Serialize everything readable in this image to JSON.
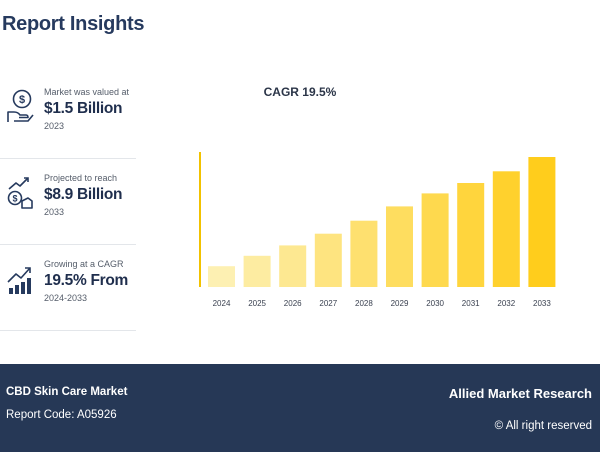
{
  "report": {
    "title": "Report Insights"
  },
  "stats": [
    {
      "label": "Market was valued at",
      "value": "$1.5 Billion",
      "year": "2023",
      "icon": "money-hand-icon"
    },
    {
      "label": "Projected to reach",
      "value": "$8.9 Billion",
      "year": "2033",
      "icon": "growth-coins-icon"
    },
    {
      "label": "Growing at a CAGR",
      "value": "19.5% From",
      "year": "2024-2033",
      "icon": "cagr-bars-icon"
    }
  ],
  "colors": {
    "navy": "#263856",
    "axis": "#f2c200",
    "bar_light": "#fdf0b2",
    "bar_dark": "#ffcd1c"
  },
  "chart_data": {
    "type": "bar",
    "title": "CAGR 19.5%",
    "categories": [
      "2024",
      "2025",
      "2026",
      "2027",
      "2028",
      "2029",
      "2030",
      "2031",
      "2032",
      "2033"
    ],
    "values": [
      0.16,
      0.24,
      0.32,
      0.41,
      0.51,
      0.62,
      0.72,
      0.8,
      0.89,
      1.0
    ],
    "xlabel": "",
    "ylabel": "",
    "ylim": [
      0,
      1
    ],
    "grid": false,
    "legend": "none"
  },
  "footer": {
    "market": "CBD Skin Care Market",
    "code": "Report Code: A05926",
    "brand": "Allied Market Research",
    "rights": "© All right reserved"
  }
}
